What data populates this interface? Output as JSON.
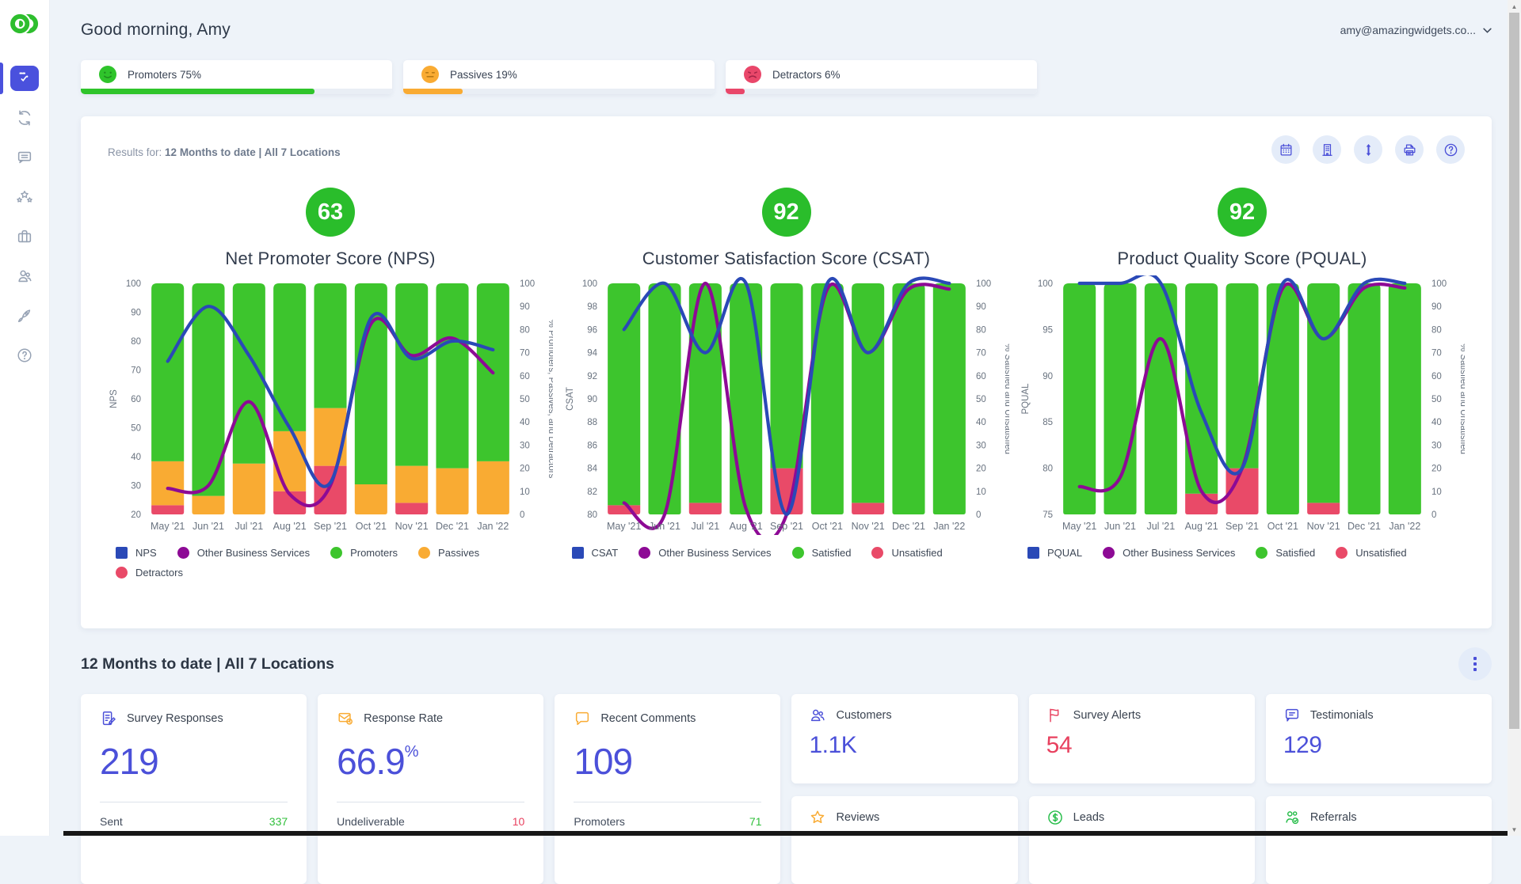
{
  "header": {
    "greeting": "Good morning, Amy",
    "account_email": "amy@amazingwidgets.co..."
  },
  "sidebar": {
    "icons": [
      "dashboard",
      "sync",
      "comments",
      "reviews",
      "business",
      "customers",
      "growth",
      "help"
    ],
    "active": "dashboard"
  },
  "sentiment": [
    {
      "label": "Promoters 75%",
      "percent": 75,
      "color": "#2fc42b",
      "face": "happy"
    },
    {
      "label": "Passives 19%",
      "percent": 19,
      "color": "#f9ab33",
      "face": "neutral"
    },
    {
      "label": "Detractors 6%",
      "percent": 6,
      "color": "#e9476a",
      "face": "sad"
    }
  ],
  "panel": {
    "results_prefix": "Results for:",
    "results_value": "12 Months to date | All 7 Locations",
    "toolbar_icons": [
      "calendar",
      "building",
      "swap-vertical",
      "printer",
      "help"
    ]
  },
  "chart_data": [
    {
      "type": "bar+line",
      "badge": "63",
      "badge_color": "#2abd2b",
      "title": "Net Promoter Score (NPS)",
      "categories": [
        "May '21",
        "Jun '21",
        "Jul '21",
        "Aug '21",
        "Sep '21",
        "Oct '21",
        "Nov '21",
        "Dec '21",
        "Jan '22"
      ],
      "left_axis": {
        "label": "NPS",
        "min": 20,
        "max": 100,
        "step": 10
      },
      "right_axis": {
        "label": "% Promoters, Passives, and Detractors",
        "min": 0,
        "max": 100,
        "step": 10
      },
      "bars": [
        {
          "name": "Detractors",
          "color": "#e94a68",
          "values": [
            4,
            0,
            0,
            10,
            21,
            0,
            5,
            0,
            0
          ]
        },
        {
          "name": "Passives",
          "color": "#f9ab33",
          "values": [
            19,
            8,
            22,
            26,
            25,
            13,
            16,
            20,
            23
          ]
        },
        {
          "name": "Promoters",
          "color": "#3dc52d",
          "values": [
            77,
            92,
            78,
            64,
            54,
            87,
            79,
            80,
            77
          ]
        }
      ],
      "lines": [
        {
          "name": "Other Business Services",
          "color": "#8d0a95",
          "axis": "left",
          "values": [
            29,
            30,
            59,
            27,
            30,
            86,
            75,
            81,
            69
          ]
        },
        {
          "name": "NPS",
          "color": "#2a49b7",
          "axis": "left",
          "values": [
            73,
            92,
            75,
            50,
            31,
            88,
            74,
            80,
            77
          ]
        }
      ],
      "legend": [
        {
          "label": "NPS",
          "color": "#2a49b7",
          "shape": "square"
        },
        {
          "label": "Other Business Services",
          "color": "#8d0a95",
          "shape": "circle"
        },
        {
          "label": "Promoters",
          "color": "#3dc52d",
          "shape": "circle"
        },
        {
          "label": "Passives",
          "color": "#f9ab33",
          "shape": "circle"
        },
        {
          "label": "Detractors",
          "color": "#e94a68",
          "shape": "circle"
        }
      ]
    },
    {
      "type": "bar+line",
      "badge": "92",
      "badge_color": "#2abd2b",
      "title": "Customer Satisfaction Score (CSAT)",
      "categories": [
        "May '21",
        "Jun '21",
        "Jul '21",
        "Aug '21",
        "Sep '21",
        "Oct '21",
        "Nov '21",
        "Dec '21",
        "Jan '22"
      ],
      "left_axis": {
        "label": "CSAT",
        "min": 80,
        "max": 100,
        "step": 2
      },
      "right_axis": {
        "label": "% Satisfied and Unsatisfied",
        "min": 0,
        "max": 100,
        "step": 10
      },
      "bars": [
        {
          "name": "Unsatisfied",
          "color": "#e94a68",
          "values": [
            4,
            0,
            5,
            0,
            20,
            0,
            5,
            0,
            0
          ]
        },
        {
          "name": "Satisfied",
          "color": "#3dc52d",
          "values": [
            96,
            100,
            95,
            100,
            80,
            100,
            95,
            100,
            100
          ]
        }
      ],
      "lines": [
        {
          "name": "Other Business Services",
          "color": "#8d0a95",
          "axis": "left",
          "values": [
            81,
            80,
            100,
            80.5,
            80,
            99.5,
            94,
            99.5,
            99.5
          ]
        },
        {
          "name": "CSAT",
          "color": "#2a49b7",
          "axis": "left",
          "values": [
            96,
            100,
            94,
            100,
            80,
            100,
            94,
            100,
            100
          ]
        }
      ],
      "legend": [
        {
          "label": "CSAT",
          "color": "#2a49b7",
          "shape": "square"
        },
        {
          "label": "Other Business Services",
          "color": "#8d0a95",
          "shape": "circle"
        },
        {
          "label": "Satisfied",
          "color": "#3dc52d",
          "shape": "circle"
        },
        {
          "label": "Unsatisfied",
          "color": "#e94a68",
          "shape": "circle"
        }
      ]
    },
    {
      "type": "bar+line",
      "badge": "92",
      "badge_color": "#2abd2b",
      "title": "Product Quality Score (PQUAL)",
      "categories": [
        "May '21",
        "Jun '21",
        "Jul '21",
        "Aug '21",
        "Sep '21",
        "Oct '21",
        "Nov '21",
        "Dec '21",
        "Jan '22"
      ],
      "left_axis": {
        "label": "PQUAL",
        "min": 75,
        "max": 100,
        "step": 5
      },
      "right_axis": {
        "label": "% Satisfied and Unsatisfied",
        "min": 0,
        "max": 100,
        "step": 10
      },
      "bars": [
        {
          "name": "Unsatisfied",
          "color": "#e94a68",
          "values": [
            0,
            0,
            0,
            9,
            20,
            0,
            5,
            0,
            0
          ]
        },
        {
          "name": "Satisfied",
          "color": "#3dc52d",
          "values": [
            100,
            100,
            100,
            91,
            80,
            100,
            95,
            100,
            100
          ]
        }
      ],
      "lines": [
        {
          "name": "Other Business Services",
          "color": "#8d0a95",
          "axis": "left",
          "values": [
            78,
            79,
            94,
            77.5,
            80,
            99.5,
            94,
            99.5,
            99.5
          ]
        },
        {
          "name": "PQUAL",
          "color": "#2a49b7",
          "axis": "left",
          "values": [
            100,
            100,
            100,
            86,
            80,
            100,
            94,
            100,
            100
          ]
        }
      ],
      "legend": [
        {
          "label": "PQUAL",
          "color": "#2a49b7",
          "shape": "square"
        },
        {
          "label": "Other Business Services",
          "color": "#8d0a95",
          "shape": "circle"
        },
        {
          "label": "Satisfied",
          "color": "#3dc52d",
          "shape": "circle"
        },
        {
          "label": "Unsatisfied",
          "color": "#e94a68",
          "shape": "circle"
        }
      ]
    }
  ],
  "section": {
    "title": "12 Months to date | All 7 Locations"
  },
  "metrics": {
    "big": [
      {
        "icon": "survey-responses-icon",
        "icon_color": "#4a4fd8",
        "title": "Survey Responses",
        "value": "219",
        "suffix": "",
        "sub_label": "Sent",
        "sub_value": "337",
        "sub_color": "#2fbf3a"
      },
      {
        "icon": "response-rate-icon",
        "icon_color": "#f9ab33",
        "title": "Response Rate",
        "value": "66.9",
        "suffix": "%",
        "sub_label": "Undeliverable",
        "sub_value": "10",
        "sub_color": "#e8415f"
      },
      {
        "icon": "recent-comments-icon",
        "icon_color": "#f9ab33",
        "title": "Recent Comments",
        "value": "109",
        "suffix": "",
        "sub_label": "Promoters",
        "sub_value": "71",
        "sub_color": "#2fbf3a"
      }
    ],
    "small": [
      {
        "icon": "customers-icon",
        "icon_color": "#4a4fd8",
        "title": "Customers",
        "value": "1.1K",
        "value_color": "#4b50d9"
      },
      {
        "icon": "survey-alerts-icon",
        "icon_color": "#e8415f",
        "title": "Survey Alerts",
        "value": "54",
        "value_color": "#e8415f"
      },
      {
        "icon": "testimonials-icon",
        "icon_color": "#4a4fd8",
        "title": "Testimonials",
        "value": "129",
        "value_color": "#4b50d9"
      }
    ],
    "small_row2": [
      {
        "icon": "reviews-icon",
        "icon_color": "#f9ab33",
        "title": "Reviews"
      },
      {
        "icon": "leads-icon",
        "icon_color": "#27bd4a",
        "title": "Leads"
      },
      {
        "icon": "referrals-icon",
        "icon_color": "#27bd4a",
        "title": "Referrals"
      }
    ]
  }
}
